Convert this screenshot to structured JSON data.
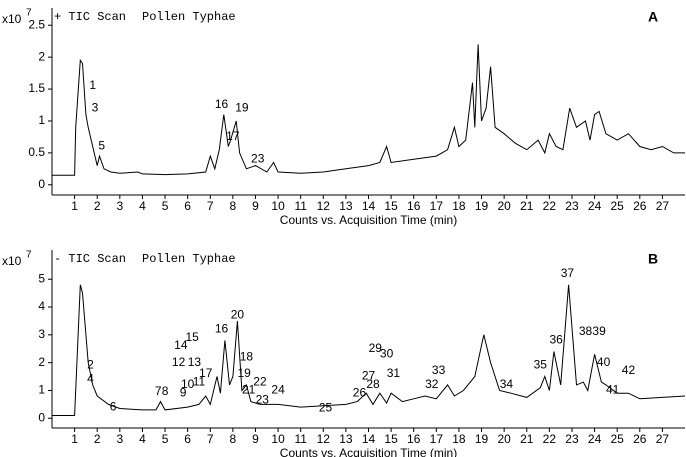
{
  "chart_data": [
    {
      "type": "line",
      "panel": "A",
      "scan": "+ TIC Scan",
      "sample": "Pollen Typhae",
      "y_scale_base": "x10",
      "y_scale_exponent": "7",
      "xlabel": "Counts vs. Acquisition Time (min)",
      "xlim": [
        0,
        28
      ],
      "xticks": [
        1,
        2,
        3,
        4,
        5,
        6,
        7,
        8,
        9,
        10,
        11,
        12,
        13,
        14,
        15,
        16,
        17,
        18,
        19,
        20,
        21,
        22,
        23,
        24,
        25,
        26,
        27
      ],
      "ylim": [
        -0.16,
        2.77
      ],
      "yticks": [
        0,
        0.5,
        1,
        1.5,
        2,
        2.5
      ],
      "color": "#000000",
      "x": [
        0,
        1,
        1.05,
        1.25,
        1.35,
        1.5,
        1.6,
        1.8,
        2.0,
        2.1,
        2.3,
        2.6,
        3,
        3.8,
        4,
        5,
        6,
        6.8,
        7.0,
        7.2,
        7.4,
        7.6,
        7.8,
        7.9,
        8.15,
        8.3,
        8.6,
        9,
        9.5,
        9.8,
        10,
        11,
        12,
        13,
        14,
        14.5,
        14.8,
        15,
        16,
        17,
        17.5,
        17.8,
        18,
        18.3,
        18.6,
        18.7,
        18.85,
        19,
        19.2,
        19.4,
        19.6,
        20,
        20.5,
        21,
        21.5,
        21.8,
        22,
        22.3,
        22.6,
        22.9,
        23.2,
        23.6,
        23.8,
        24.0,
        24.2,
        24.5,
        25,
        25.5,
        26,
        26.5,
        27,
        27.5,
        28
      ],
      "values": [
        0.15,
        0.15,
        0.9,
        1.95,
        1.9,
        1.1,
        0.9,
        0.6,
        0.3,
        0.45,
        0.25,
        0.2,
        0.18,
        0.2,
        0.17,
        0.16,
        0.17,
        0.2,
        0.45,
        0.25,
        0.55,
        1.1,
        0.6,
        0.7,
        1.0,
        0.5,
        0.25,
        0.3,
        0.2,
        0.35,
        0.2,
        0.18,
        0.2,
        0.25,
        0.3,
        0.35,
        0.6,
        0.35,
        0.4,
        0.45,
        0.55,
        0.9,
        0.6,
        0.7,
        1.6,
        0.9,
        2.2,
        1.0,
        1.2,
        1.85,
        0.9,
        0.8,
        0.65,
        0.55,
        0.7,
        0.5,
        0.8,
        0.6,
        0.55,
        1.2,
        0.9,
        1.0,
        0.7,
        1.1,
        1.15,
        0.8,
        0.7,
        0.8,
        0.6,
        0.55,
        0.6,
        0.5,
        0.5
      ],
      "peaks": [
        {
          "label": "1",
          "x": 1.8,
          "y": 1.55
        },
        {
          "label": "3",
          "x": 1.9,
          "y": 1.2
        },
        {
          "label": "5",
          "x": 2.2,
          "y": 0.6
        },
        {
          "label": "16",
          "x": 7.5,
          "y": 1.25
        },
        {
          "label": "17",
          "x": 8.0,
          "y": 0.75
        },
        {
          "label": "19",
          "x": 8.4,
          "y": 1.2
        },
        {
          "label": "23",
          "x": 9.1,
          "y": 0.4
        }
      ]
    },
    {
      "type": "line",
      "panel": "B",
      "scan": "- TIC Scan",
      "sample": "Pollen Typhae",
      "y_scale_base": "x10",
      "y_scale_exponent": "7",
      "xlabel": "Counts vs. Acquisition Time (min)",
      "xlim": [
        0,
        28
      ],
      "xticks": [
        1,
        2,
        3,
        4,
        5,
        6,
        7,
        8,
        9,
        10,
        11,
        12,
        13,
        14,
        15,
        16,
        17,
        18,
        19,
        20,
        21,
        22,
        23,
        24,
        25,
        26,
        27
      ],
      "ylim": [
        -0.35,
        6.05
      ],
      "yticks": [
        0,
        1,
        2,
        3,
        4,
        5
      ],
      "color": "#000000",
      "x": [
        0,
        1.0,
        1.25,
        1.35,
        1.6,
        1.8,
        2.0,
        2.5,
        3,
        4,
        4.6,
        4.8,
        5,
        6,
        6.5,
        6.8,
        7,
        7.3,
        7.45,
        7.65,
        7.85,
        8.0,
        8.2,
        8.4,
        8.6,
        8.8,
        9.2,
        10,
        11,
        12,
        13,
        13.5,
        13.9,
        14.2,
        14.5,
        14.8,
        15,
        15.5,
        16,
        16.5,
        17,
        17.5,
        17.8,
        18.2,
        18.7,
        19.1,
        19.4,
        19.8,
        20.3,
        21,
        21.6,
        21.8,
        22,
        22.2,
        22.5,
        22.85,
        23.2,
        23.5,
        23.7,
        24.0,
        24.3,
        24.5,
        25,
        25.5,
        26,
        27,
        28
      ],
      "values": [
        0.1,
        0.1,
        4.8,
        4.5,
        2.0,
        1.2,
        0.8,
        0.5,
        0.35,
        0.3,
        0.3,
        0.6,
        0.3,
        0.4,
        0.5,
        0.8,
        0.5,
        1.5,
        0.9,
        2.8,
        1.2,
        1.5,
        3.5,
        1.0,
        1.2,
        0.6,
        0.5,
        0.5,
        0.4,
        0.45,
        0.5,
        0.6,
        0.9,
        0.5,
        0.9,
        0.55,
        0.9,
        0.6,
        0.7,
        0.8,
        0.7,
        1.2,
        0.8,
        1.0,
        1.5,
        3.0,
        2.0,
        1.0,
        0.9,
        0.75,
        1.1,
        1.5,
        1.0,
        2.4,
        1.2,
        4.8,
        1.2,
        1.3,
        1.0,
        2.3,
        1.3,
        1.2,
        0.9,
        0.9,
        0.7,
        0.75,
        0.8
      ],
      "peaks": [
        {
          "label": "2",
          "x": 1.7,
          "y": 1.9
        },
        {
          "label": "4",
          "x": 1.7,
          "y": 1.4
        },
        {
          "label": "6",
          "x": 2.7,
          "y": 0.4
        },
        {
          "label": "7",
          "x": 4.7,
          "y": 0.95
        },
        {
          "label": "8",
          "x": 5.0,
          "y": 0.95
        },
        {
          "label": "9",
          "x": 5.8,
          "y": 0.9
        },
        {
          "label": "10",
          "x": 6.0,
          "y": 1.2
        },
        {
          "label": "11",
          "x": 6.5,
          "y": 1.3
        },
        {
          "label": "12",
          "x": 5.6,
          "y": 2.0
        },
        {
          "label": "13",
          "x": 6.3,
          "y": 2.0
        },
        {
          "label": "14",
          "x": 5.7,
          "y": 2.6
        },
        {
          "label": "15",
          "x": 6.2,
          "y": 2.9
        },
        {
          "label": "16",
          "x": 7.5,
          "y": 3.2
        },
        {
          "label": "17",
          "x": 6.8,
          "y": 1.6
        },
        {
          "label": "18",
          "x": 8.6,
          "y": 2.2
        },
        {
          "label": "19",
          "x": 8.5,
          "y": 1.6
        },
        {
          "label": "20",
          "x": 8.2,
          "y": 3.7
        },
        {
          "label": "21",
          "x": 8.7,
          "y": 1.0
        },
        {
          "label": "22",
          "x": 9.2,
          "y": 1.3
        },
        {
          "label": "23",
          "x": 9.3,
          "y": 0.65
        },
        {
          "label": "24",
          "x": 10,
          "y": 1.0
        },
        {
          "label": "25",
          "x": 12.1,
          "y": 0.35
        },
        {
          "label": "26",
          "x": 13.6,
          "y": 0.9
        },
        {
          "label": "27",
          "x": 14,
          "y": 1.5
        },
        {
          "label": "28",
          "x": 14.2,
          "y": 1.2
        },
        {
          "label": "29",
          "x": 14.3,
          "y": 2.5
        },
        {
          "label": "30",
          "x": 14.8,
          "y": 2.3
        },
        {
          "label": "31",
          "x": 15.1,
          "y": 1.6
        },
        {
          "label": "32",
          "x": 16.8,
          "y": 1.2
        },
        {
          "label": "33",
          "x": 17.1,
          "y": 1.7
        },
        {
          "label": "34",
          "x": 20.1,
          "y": 1.2
        },
        {
          "label": "35",
          "x": 21.6,
          "y": 1.9
        },
        {
          "label": "36",
          "x": 22.3,
          "y": 2.8
        },
        {
          "label": "37",
          "x": 22.8,
          "y": 5.2
        },
        {
          "label": "38",
          "x": 23.6,
          "y": 3.1
        },
        {
          "label": "39",
          "x": 24.2,
          "y": 3.1
        },
        {
          "label": "40",
          "x": 24.4,
          "y": 2.0
        },
        {
          "label": "41",
          "x": 24.8,
          "y": 1.0
        },
        {
          "label": "42",
          "x": 25.5,
          "y": 1.7
        }
      ]
    }
  ]
}
